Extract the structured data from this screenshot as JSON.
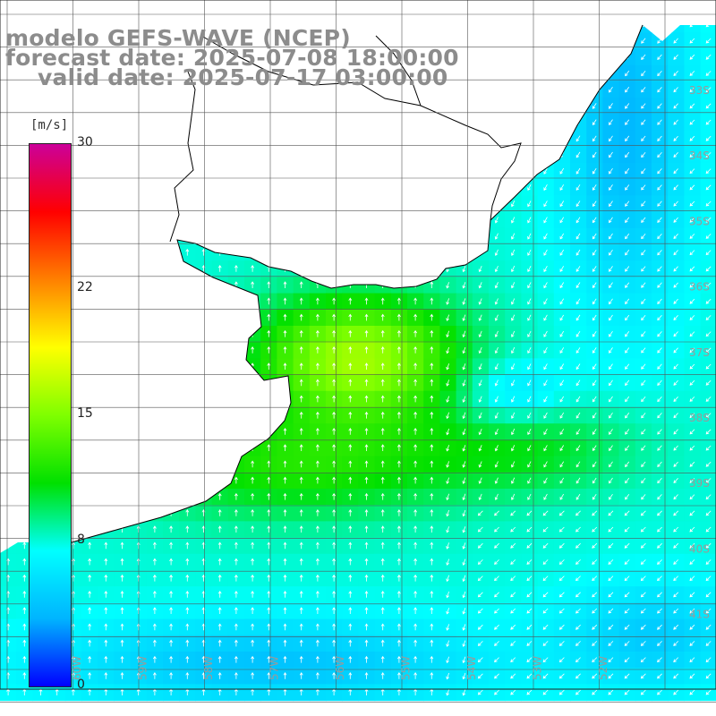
{
  "title": {
    "line1": "modelo GEFS-WAVE (NCEP)",
    "line2": "forecast date: 2025-07-08 18:00:00",
    "line3": "valid date: 2025-07-17 03:00:00"
  },
  "colorbar": {
    "unit": "[m/s]",
    "ticks": [
      "30",
      "22",
      "15",
      "8",
      "0"
    ],
    "tick_values": [
      30,
      22,
      15,
      8,
      0
    ],
    "min": 0,
    "max": 30,
    "colors": [
      "#0000ff",
      "#00b4ff",
      "#00ffff",
      "#00e000",
      "#7fff00",
      "#ffff00",
      "#ff8000",
      "#ff0000",
      "#cc0099"
    ]
  },
  "map": {
    "grid_on": true,
    "lat_labels": [
      "33S",
      "34S",
      "35S",
      "36S",
      "37S",
      "38S",
      "39S",
      "40S",
      "41S"
    ],
    "lon_labels": [
      "60W",
      "59W",
      "58W",
      "57W",
      "56W",
      "55W",
      "54W",
      "53W",
      "52W"
    ],
    "land_color": "#ffffff",
    "coast_color": "#000000"
  }
}
